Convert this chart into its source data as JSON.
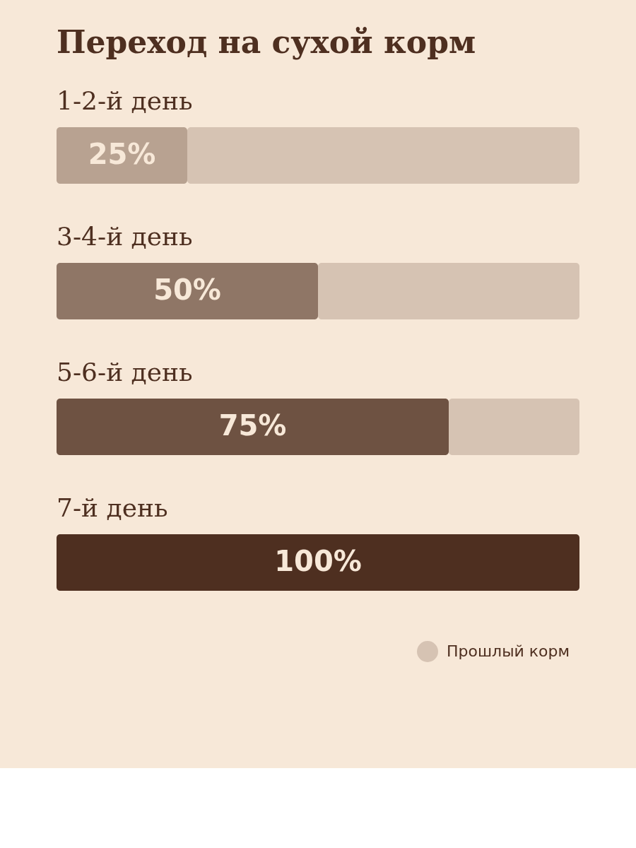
{
  "chart_data": {
    "type": "bar",
    "orientation": "horizontal",
    "stacked": true,
    "title": "Переход на сухой корм",
    "categories": [
      "1-2-й день",
      "3-4-й день",
      "5-6-й день",
      "7-й день"
    ],
    "xlim": [
      0,
      100
    ],
    "legend": "bottom right",
    "series": [
      {
        "colors": [
          "#b8a291",
          "#8f7666",
          "#6e5242",
          "#4e2f20"
        ],
        "values": [
          25,
          50,
          75,
          100
        ],
        "value_labels": [
          "25%",
          "50%",
          "75%",
          "100%"
        ]
      },
      {
        "name": "Прошлый корм",
        "color": "#d6c3b3",
        "values": [
          75,
          50,
          25,
          0
        ]
      }
    ]
  }
}
